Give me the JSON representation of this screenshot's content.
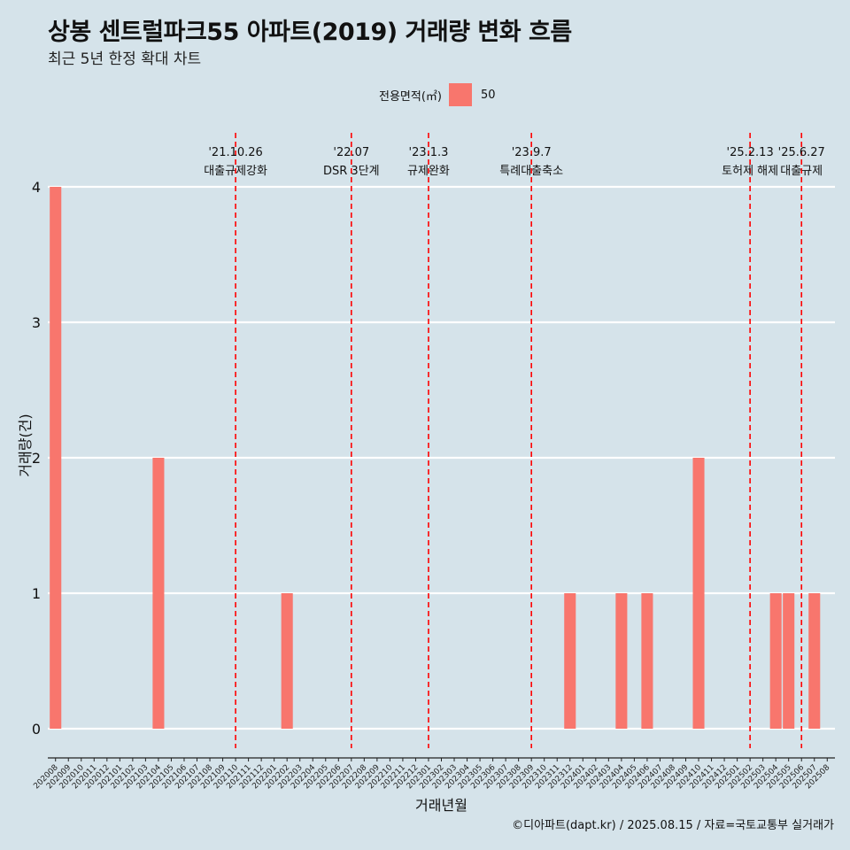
{
  "title": "상봉 센트럴파크55 아파트(2019) 거래량 변화 흐름",
  "subtitle": "최근 5년 한정 확대 차트",
  "caption": "©디아파트(dapt.kr) / 2025.08.15 / 자료=국토교통부 실거래가",
  "legend": {
    "title": "전용면적(㎡)",
    "items": [
      {
        "label": "50",
        "color": "#f8766d"
      }
    ]
  },
  "colors": {
    "background": "#d5e3ea",
    "bar": "#f8766d",
    "grid": "#ffffff",
    "event_line": "#ff0000"
  },
  "chart_data": {
    "type": "bar",
    "xlabel": "거래년월",
    "ylabel": "거래량(건)",
    "ylim": [
      0,
      4
    ],
    "y_ticks": [
      "0",
      "1",
      "2",
      "3",
      "4"
    ],
    "grid": true,
    "legend_position": "top",
    "categories": [
      "202008",
      "202009",
      "202010",
      "202011",
      "202012",
      "202101",
      "202102",
      "202103",
      "202104",
      "202105",
      "202106",
      "202107",
      "202108",
      "202109",
      "202110",
      "202111",
      "202112",
      "202201",
      "202202",
      "202203",
      "202204",
      "202205",
      "202206",
      "202207",
      "202208",
      "202209",
      "202210",
      "202211",
      "202212",
      "202301",
      "202302",
      "202303",
      "202304",
      "202305",
      "202306",
      "202307",
      "202308",
      "202309",
      "202310",
      "202311",
      "202312",
      "202401",
      "202402",
      "202403",
      "202404",
      "202405",
      "202406",
      "202407",
      "202408",
      "202409",
      "202410",
      "202411",
      "202412",
      "202501",
      "202502",
      "202503",
      "202504",
      "202505",
      "202506",
      "202507",
      "202508"
    ],
    "series": [
      {
        "name": "50",
        "values": [
          4,
          0,
          0,
          0,
          0,
          0,
          0,
          0,
          2,
          0,
          0,
          0,
          0,
          0,
          0,
          0,
          0,
          0,
          1,
          0,
          0,
          0,
          0,
          0,
          0,
          0,
          0,
          0,
          0,
          0,
          0,
          0,
          0,
          0,
          0,
          0,
          0,
          0,
          0,
          0,
          1,
          0,
          0,
          0,
          1,
          0,
          1,
          0,
          0,
          0,
          2,
          0,
          0,
          0,
          0,
          0,
          1,
          1,
          0,
          1,
          0
        ]
      }
    ],
    "annotations": [
      {
        "date": "'21.10.26",
        "label": "대출규제강화",
        "x": "202110"
      },
      {
        "date": "'22.07",
        "label": "DSR 3단계",
        "x": "202207"
      },
      {
        "date": "'23.1.3",
        "label": "규제완화",
        "x": "202301"
      },
      {
        "date": "'23.9.7",
        "label": "특례대출축소",
        "x": "202309"
      },
      {
        "date": "'25.2.13",
        "label": "토허제 해제",
        "x": "202502"
      },
      {
        "date": "'25.6.27",
        "label": "대출규제",
        "x": "202506"
      }
    ]
  }
}
